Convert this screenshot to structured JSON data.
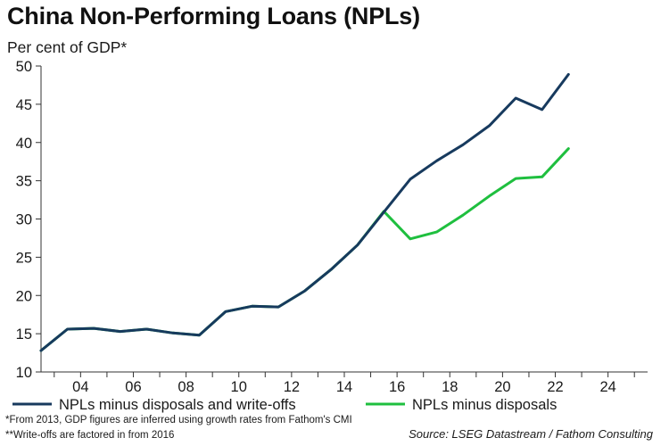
{
  "header": {
    "title": "China Non-Performing Loans (NPLs)",
    "subtitle": "Per cent of GDP*"
  },
  "footnotes": [
    "*From 2013, GDP figures are inferred using growth rates from Fathom's CMI",
    "**Write-offs are factored in from 2016"
  ],
  "source": "Source: LSEG Datastream / Fathom Consulting",
  "colors": {
    "npls_minus_disposals_and_writeoffs": "#173a5e",
    "npls_minus_disposals": "#1fbf3f",
    "axis": "#333333"
  },
  "chart_data": {
    "type": "line",
    "title": "China Non-Performing Loans (NPLs)",
    "ylabel": "Per cent of GDP*",
    "xlabel": "",
    "xlim": [
      2002.5,
      2025.5
    ],
    "ylim": [
      10,
      50
    ],
    "yticks": [
      10,
      15,
      20,
      25,
      30,
      35,
      40,
      45,
      50
    ],
    "xticks": [
      2004,
      2006,
      2008,
      2010,
      2012,
      2014,
      2016,
      2018,
      2020,
      2022,
      2024
    ],
    "xtick_labels": [
      "04",
      "06",
      "08",
      "10",
      "12",
      "14",
      "16",
      "18",
      "20",
      "22",
      "24"
    ],
    "grid": false,
    "legend_position": "bottom",
    "series": [
      {
        "name": "NPLs minus disposals",
        "color": "#1fbf3f",
        "x": [
          2002.5,
          2003.5,
          2004.5,
          2005.5,
          2006.5,
          2007.5,
          2008.5,
          2009.5,
          2010.5,
          2011.5,
          2012.5,
          2013.5,
          2014.5,
          2015.5,
          2016.5,
          2017.5,
          2018.5,
          2019.5,
          2020.5,
          2021.5,
          2022.5
        ],
        "values": [
          12.8,
          15.6,
          15.7,
          15.3,
          15.6,
          15.1,
          14.8,
          17.9,
          18.6,
          18.5,
          20.6,
          23.4,
          26.6,
          31.0,
          27.4,
          28.3,
          30.5,
          33.0,
          35.3,
          35.5,
          39.2
        ]
      },
      {
        "name": "NPLs minus disposals and write-offs",
        "color": "#173a5e",
        "x": [
          2002.5,
          2003.5,
          2004.5,
          2005.5,
          2006.5,
          2007.5,
          2008.5,
          2009.5,
          2010.5,
          2011.5,
          2012.5,
          2013.5,
          2014.5,
          2015.5,
          2016.5,
          2017.5,
          2018.5,
          2019.5,
          2020.5,
          2021.5,
          2022.5
        ],
        "values": [
          12.8,
          15.6,
          15.7,
          15.3,
          15.6,
          15.1,
          14.8,
          17.9,
          18.6,
          18.5,
          20.6,
          23.4,
          26.6,
          30.9,
          35.2,
          37.6,
          39.7,
          42.2,
          45.8,
          44.3,
          48.9
        ]
      }
    ],
    "legend": [
      "NPLs minus disposals and write-offs",
      "NPLs minus disposals"
    ]
  }
}
